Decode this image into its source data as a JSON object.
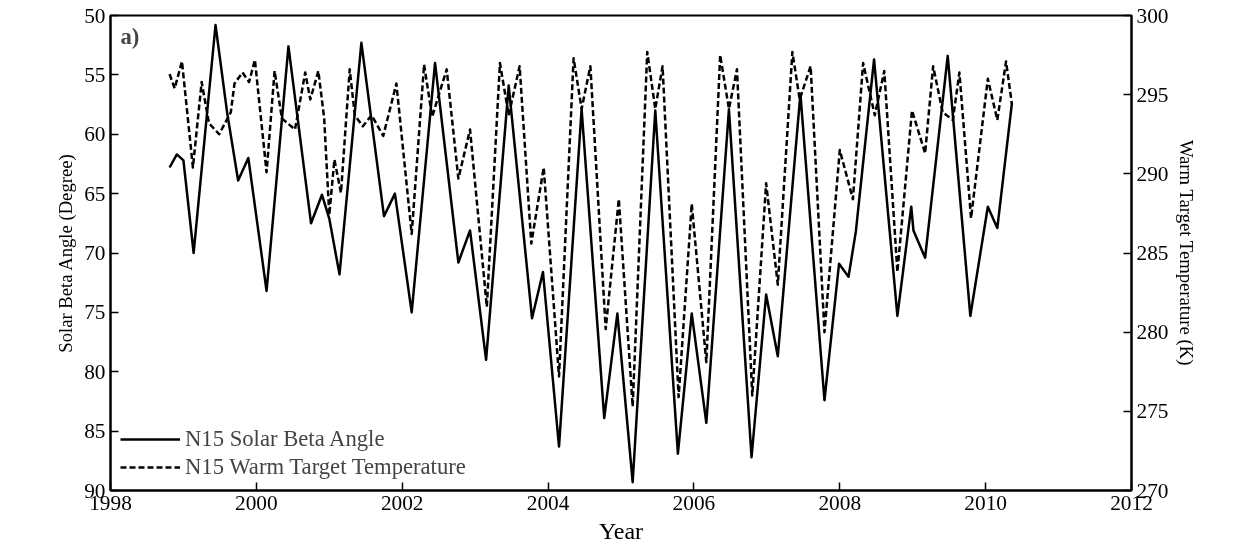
{
  "chart_data": {
    "type": "line",
    "xlabel": "Year",
    "ylabel": "Solar Beta Angle (Degree)",
    "y2label": "Warm Target Temperature (K)",
    "annotations": [
      "a)"
    ],
    "xlim": [
      1998,
      2012
    ],
    "xticks": [
      1998,
      2000,
      2002,
      2004,
      2006,
      2008,
      2010,
      2012
    ],
    "ylim": [
      90,
      50
    ],
    "yticks": [
      50,
      55,
      60,
      65,
      70,
      75,
      80,
      85,
      90
    ],
    "y2lim": [
      270,
      300
    ],
    "y2ticks": [
      270,
      275,
      280,
      285,
      290,
      295,
      300
    ],
    "grid": false,
    "legend": "bottom left",
    "series": [
      {
        "name": "N15 Solar Beta Angle",
        "color": "#000000",
        "line_style": "solid",
        "axis": "y",
        "x": [
          1998.81,
          1998.91,
          1999.0,
          1999.14,
          1999.44,
          1999.6,
          1999.75,
          1999.89,
          2000.14,
          2000.44,
          2000.75,
          2000.9,
          2001.0,
          2001.14,
          2001.44,
          2001.75,
          2001.9,
          2002.13,
          2002.45,
          2002.77,
          2002.93,
          2003.15,
          2003.46,
          2003.78,
          2003.93,
          2004.15,
          2004.46,
          2004.77,
          2004.95,
          2005.16,
          2005.47,
          2005.78,
          2005.97,
          2006.17,
          2006.48,
          2006.79,
          2006.99,
          2007.15,
          2007.46,
          2007.79,
          2007.99,
          2008.12,
          2008.22,
          2008.47,
          2008.79,
          2008.98,
          2009.01,
          2009.17,
          2009.48,
          2009.79,
          2010.03,
          2010.16,
          2010.36
        ],
        "values": [
          62.8,
          61.7,
          62.2,
          70.0,
          50.8,
          58.2,
          63.9,
          62.0,
          73.2,
          52.6,
          67.5,
          65.1,
          67.1,
          71.8,
          52.3,
          66.9,
          65.0,
          75.0,
          54.0,
          70.8,
          68.1,
          79.0,
          55.9,
          75.5,
          71.6,
          86.3,
          57.9,
          83.9,
          75.1,
          89.3,
          58.0,
          86.9,
          75.1,
          84.3,
          57.9,
          87.2,
          73.5,
          78.7,
          56.6,
          82.4,
          70.9,
          72.0,
          68.2,
          53.7,
          75.3,
          66.1,
          68.1,
          70.4,
          53.4,
          75.3,
          66.1,
          67.9,
          57.4
        ]
      },
      {
        "name": "N15 Warm Target Temperature",
        "color": "#000000",
        "line_style": "dashed",
        "axis": "y2",
        "x": [
          1998.81,
          1998.88,
          1998.98,
          1999.13,
          1999.25,
          1999.35,
          1999.49,
          1999.65,
          1999.7,
          1999.81,
          1999.9,
          1999.98,
          2000.14,
          2000.25,
          2000.35,
          2000.53,
          2000.67,
          2000.74,
          2000.85,
          2000.93,
          2001.0,
          2001.07,
          2001.16,
          2001.28,
          2001.35,
          2001.46,
          2001.58,
          2001.74,
          2001.92,
          2002.13,
          2002.3,
          2002.41,
          2002.61,
          2002.77,
          2002.93,
          2003.16,
          2003.34,
          2003.46,
          2003.61,
          2003.77,
          2003.94,
          2004.15,
          2004.35,
          2004.46,
          2004.58,
          2004.79,
          2004.97,
          2005.16,
          2005.36,
          2005.47,
          2005.57,
          2005.79,
          2005.97,
          2006.17,
          2006.36,
          2006.48,
          2006.59,
          2006.8,
          2006.99,
          2007.15,
          2007.35,
          2007.45,
          2007.6,
          2007.79,
          2008.0,
          2008.18,
          2008.32,
          2008.48,
          2008.61,
          2008.79,
          2008.99,
          2009.17,
          2009.28,
          2009.41,
          2009.55,
          2009.64,
          2009.8,
          2010.03,
          2010.16,
          2010.28,
          2010.36
        ],
        "values": [
          296.3,
          295.4,
          297.1,
          290.4,
          295.8,
          293.2,
          292.5,
          293.9,
          295.7,
          296.4,
          295.8,
          297.2,
          290.1,
          296.5,
          293.5,
          292.8,
          296.4,
          294.7,
          296.5,
          293.5,
          287.4,
          290.9,
          288.8,
          296.6,
          293.7,
          293.0,
          293.7,
          292.4,
          295.7,
          286.2,
          296.9,
          293.6,
          296.6,
          289.7,
          292.8,
          281.6,
          297.0,
          293.7,
          296.8,
          285.6,
          290.4,
          277.2,
          297.3,
          294.1,
          296.8,
          280.2,
          288.4,
          275.3,
          297.7,
          294.1,
          296.8,
          275.9,
          288.1,
          278.1,
          297.5,
          294.1,
          296.6,
          276.0,
          289.4,
          283.0,
          297.7,
          294.7,
          296.8,
          280.0,
          291.5,
          288.4,
          297.0,
          293.7,
          296.5,
          283.8,
          294.0,
          291.3,
          296.8,
          293.9,
          293.4,
          296.4,
          287.2,
          296.0,
          293.4,
          297.1,
          294.4
        ]
      }
    ]
  }
}
